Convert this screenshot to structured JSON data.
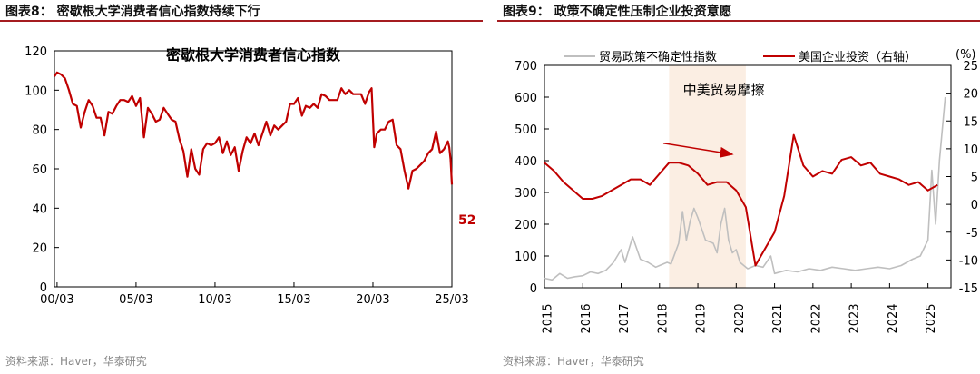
{
  "figures": [
    {
      "title": "图表8：  密歇根大学消费者信心指数持续下行",
      "source": "资料来源：Haver，华泰研究"
    },
    {
      "title": "图表9：  政策不确定性压制企业投资意愿",
      "source": "资料来源：Haver，华泰研究"
    }
  ],
  "chart_data": [
    {
      "type": "line",
      "title": "密歇根大学消费者信心指数",
      "xlabel": "",
      "ylabel": "",
      "x_range": [
        "2000-01",
        "2025-03"
      ],
      "ylim": [
        0,
        120
      ],
      "yticks": [
        "0",
        "20",
        "40",
        "60",
        "80",
        "100",
        "120"
      ],
      "xticks": [
        {
          "label": "00/03",
          "x": "2000-03"
        },
        {
          "label": "05/03",
          "x": "2005-03"
        },
        {
          "label": "10/03",
          "x": "2010-03"
        },
        {
          "label": "15/03",
          "x": "2015-03"
        },
        {
          "label": "20/03",
          "x": "2020-03"
        },
        {
          "label": "25/03",
          "x": "2025-03"
        }
      ],
      "grid": false,
      "color": "#c00000",
      "last_label": "52",
      "series": [
        {
          "points": [
            [
              "2000-01",
              107
            ],
            [
              "2000-03",
              109
            ],
            [
              "2000-06",
              108
            ],
            [
              "2000-09",
              106
            ],
            [
              "2000-12",
              100
            ],
            [
              "2001-03",
              93
            ],
            [
              "2001-06",
              92
            ],
            [
              "2001-09",
              81
            ],
            [
              "2001-12",
              89
            ],
            [
              "2002-03",
              95
            ],
            [
              "2002-06",
              92
            ],
            [
              "2002-09",
              86
            ],
            [
              "2002-12",
              86
            ],
            [
              "2003-03",
              77
            ],
            [
              "2003-06",
              89
            ],
            [
              "2003-09",
              88
            ],
            [
              "2003-12",
              92
            ],
            [
              "2004-03",
              95
            ],
            [
              "2004-06",
              95
            ],
            [
              "2004-09",
              94
            ],
            [
              "2004-12",
              97
            ],
            [
              "2005-03",
              92
            ],
            [
              "2005-06",
              96
            ],
            [
              "2005-09",
              76
            ],
            [
              "2005-12",
              91
            ],
            [
              "2006-03",
              88
            ],
            [
              "2006-06",
              84
            ],
            [
              "2006-09",
              85
            ],
            [
              "2006-12",
              91
            ],
            [
              "2007-03",
              88
            ],
            [
              "2007-06",
              85
            ],
            [
              "2007-09",
              84
            ],
            [
              "2007-12",
              75
            ],
            [
              "2008-03",
              69
            ],
            [
              "2008-06",
              56
            ],
            [
              "2008-09",
              70
            ],
            [
              "2008-12",
              60
            ],
            [
              "2009-03",
              57
            ],
            [
              "2009-06",
              70
            ],
            [
              "2009-09",
              73
            ],
            [
              "2009-12",
              72
            ],
            [
              "2010-03",
              73
            ],
            [
              "2010-06",
              76
            ],
            [
              "2010-09",
              68
            ],
            [
              "2010-12",
              74
            ],
            [
              "2011-03",
              67
            ],
            [
              "2011-06",
              71
            ],
            [
              "2011-09",
              59
            ],
            [
              "2011-12",
              69
            ],
            [
              "2012-03",
              76
            ],
            [
              "2012-06",
              73
            ],
            [
              "2012-09",
              78
            ],
            [
              "2012-12",
              72
            ],
            [
              "2013-03",
              78
            ],
            [
              "2013-06",
              84
            ],
            [
              "2013-09",
              77
            ],
            [
              "2013-12",
              82
            ],
            [
              "2014-03",
              80
            ],
            [
              "2014-06",
              82
            ],
            [
              "2014-09",
              84
            ],
            [
              "2014-12",
              93
            ],
            [
              "2015-03",
              93
            ],
            [
              "2015-06",
              96
            ],
            [
              "2015-09",
              87
            ],
            [
              "2015-12",
              92
            ],
            [
              "2016-03",
              91
            ],
            [
              "2016-06",
              93
            ],
            [
              "2016-09",
              91
            ],
            [
              "2016-12",
              98
            ],
            [
              "2017-03",
              97
            ],
            [
              "2017-06",
              95
            ],
            [
              "2017-09",
              95
            ],
            [
              "2017-12",
              95
            ],
            [
              "2018-03",
              101
            ],
            [
              "2018-06",
              98
            ],
            [
              "2018-09",
              100
            ],
            [
              "2018-12",
              98
            ],
            [
              "2019-03",
              98
            ],
            [
              "2019-06",
              98
            ],
            [
              "2019-09",
              93
            ],
            [
              "2019-12",
              99
            ],
            [
              "2020-02",
              101
            ],
            [
              "2020-04",
              71
            ],
            [
              "2020-06",
              78
            ],
            [
              "2020-09",
              80
            ],
            [
              "2020-12",
              80
            ],
            [
              "2021-03",
              84
            ],
            [
              "2021-06",
              85
            ],
            [
              "2021-09",
              72
            ],
            [
              "2021-12",
              70
            ],
            [
              "2022-03",
              59
            ],
            [
              "2022-06",
              50
            ],
            [
              "2022-09",
              59
            ],
            [
              "2022-12",
              60
            ],
            [
              "2023-03",
              62
            ],
            [
              "2023-06",
              64
            ],
            [
              "2023-09",
              68
            ],
            [
              "2023-12",
              70
            ],
            [
              "2024-03",
              79
            ],
            [
              "2024-06",
              68
            ],
            [
              "2024-09",
              70
            ],
            [
              "2024-12",
              74
            ],
            [
              "2025-01",
              71
            ],
            [
              "2025-02",
              65
            ],
            [
              "2025-03",
              52
            ]
          ]
        }
      ]
    },
    {
      "type": "line",
      "title": "",
      "xlim": [
        2015,
        2025.6
      ],
      "ylim_left": [
        0,
        700
      ],
      "ylim_right": [
        -15,
        25
      ],
      "yticks_left": [
        "0",
        "100",
        "200",
        "300",
        "400",
        "500",
        "600",
        "700"
      ],
      "yticks_right": [
        "-15",
        "-10",
        "-5",
        "0",
        "5",
        "10",
        "15",
        "20",
        "25"
      ],
      "right_unit": "(%)",
      "xticks": [
        "2015",
        "2016",
        "2017",
        "2018",
        "2019",
        "2020",
        "2021",
        "2022",
        "2023",
        "2024",
        "2025"
      ],
      "grid": false,
      "legend": "top",
      "annotation": {
        "text": "中美贸易摩擦",
        "x_from": 2018.25,
        "x_to": 2020.25,
        "arrow_from": [
          2018.1,
          11
        ],
        "arrow_to": [
          2019.9,
          9
        ]
      },
      "series": [
        {
          "name": "贸易政策不确定性指数",
          "axis": "left",
          "color": "#bfbfbf",
          "points": [
            [
              2015.0,
              30
            ],
            [
              2015.2,
              25
            ],
            [
              2015.4,
              45
            ],
            [
              2015.6,
              30
            ],
            [
              2015.8,
              35
            ],
            [
              2016.0,
              38
            ],
            [
              2016.2,
              50
            ],
            [
              2016.4,
              45
            ],
            [
              2016.6,
              55
            ],
            [
              2016.8,
              80
            ],
            [
              2017.0,
              120
            ],
            [
              2017.1,
              80
            ],
            [
              2017.3,
              160
            ],
            [
              2017.5,
              90
            ],
            [
              2017.7,
              80
            ],
            [
              2017.9,
              65
            ],
            [
              2018.0,
              70
            ],
            [
              2018.2,
              80
            ],
            [
              2018.3,
              75
            ],
            [
              2018.5,
              140
            ],
            [
              2018.6,
              240
            ],
            [
              2018.7,
              150
            ],
            [
              2018.8,
              210
            ],
            [
              2018.9,
              250
            ],
            [
              2019.0,
              220
            ],
            [
              2019.2,
              150
            ],
            [
              2019.4,
              140
            ],
            [
              2019.5,
              110
            ],
            [
              2019.6,
              200
            ],
            [
              2019.7,
              250
            ],
            [
              2019.8,
              150
            ],
            [
              2019.9,
              110
            ],
            [
              2020.0,
              120
            ],
            [
              2020.1,
              80
            ],
            [
              2020.3,
              60
            ],
            [
              2020.5,
              70
            ],
            [
              2020.7,
              65
            ],
            [
              2020.9,
              100
            ],
            [
              2021.0,
              45
            ],
            [
              2021.3,
              55
            ],
            [
              2021.6,
              50
            ],
            [
              2021.9,
              60
            ],
            [
              2022.2,
              55
            ],
            [
              2022.5,
              65
            ],
            [
              2022.8,
              60
            ],
            [
              2023.1,
              55
            ],
            [
              2023.4,
              60
            ],
            [
              2023.7,
              65
            ],
            [
              2024.0,
              60
            ],
            [
              2024.3,
              70
            ],
            [
              2024.6,
              90
            ],
            [
              2024.8,
              100
            ],
            [
              2025.0,
              150
            ],
            [
              2025.1,
              370
            ],
            [
              2025.2,
              200
            ],
            [
              2025.3,
              400
            ],
            [
              2025.45,
              600
            ]
          ]
        },
        {
          "name": "美国企业投资（右轴）",
          "axis": "right",
          "color": "#c00000",
          "points": [
            [
              2015.0,
              7.5
            ],
            [
              2015.25,
              6
            ],
            [
              2015.5,
              4
            ],
            [
              2015.75,
              2.5
            ],
            [
              2016.0,
              1
            ],
            [
              2016.25,
              1
            ],
            [
              2016.5,
              1.5
            ],
            [
              2016.75,
              2.5
            ],
            [
              2017.0,
              3.5
            ],
            [
              2017.25,
              4.5
            ],
            [
              2017.5,
              4.5
            ],
            [
              2017.75,
              3.5
            ],
            [
              2018.0,
              5.5
            ],
            [
              2018.25,
              7.5
            ],
            [
              2018.5,
              7.5
            ],
            [
              2018.75,
              7
            ],
            [
              2019.0,
              5.5
            ],
            [
              2019.25,
              3.5
            ],
            [
              2019.5,
              4
            ],
            [
              2019.75,
              4
            ],
            [
              2020.0,
              2.5
            ],
            [
              2020.25,
              -0.5
            ],
            [
              2020.5,
              -11
            ],
            [
              2020.75,
              -8
            ],
            [
              2021.0,
              -5
            ],
            [
              2021.25,
              1.5
            ],
            [
              2021.5,
              12.5
            ],
            [
              2021.75,
              7
            ],
            [
              2022.0,
              5
            ],
            [
              2022.25,
              6
            ],
            [
              2022.5,
              5.5
            ],
            [
              2022.75,
              8
            ],
            [
              2023.0,
              8.5
            ],
            [
              2023.25,
              7
            ],
            [
              2023.5,
              7.5
            ],
            [
              2023.75,
              5.5
            ],
            [
              2024.0,
              5
            ],
            [
              2024.25,
              4.5
            ],
            [
              2024.5,
              3.5
            ],
            [
              2024.75,
              4
            ],
            [
              2025.0,
              2.5
            ],
            [
              2025.25,
              3.5
            ]
          ]
        }
      ]
    }
  ]
}
